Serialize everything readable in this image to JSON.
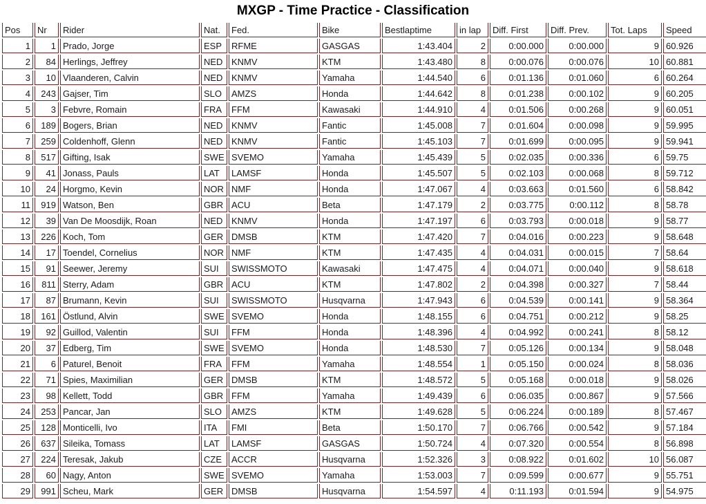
{
  "title": "MXGP - Time Practice - Classification",
  "colors": {
    "table_border": "#7b2323",
    "text": "#1a1a1a",
    "background": "#ffffff"
  },
  "table": {
    "columns": [
      {
        "key": "pos",
        "label": "Pos"
      },
      {
        "key": "nr",
        "label": "Nr"
      },
      {
        "key": "rider",
        "label": "Rider"
      },
      {
        "key": "nat",
        "label": "Nat."
      },
      {
        "key": "fed",
        "label": "Fed."
      },
      {
        "key": "bike",
        "label": "Bike"
      },
      {
        "key": "bestlaptime",
        "label": "Bestlaptime"
      },
      {
        "key": "in_lap",
        "label": "in lap"
      },
      {
        "key": "diff_first",
        "label": "Diff. First"
      },
      {
        "key": "diff_prev",
        "label": "Diff. Prev."
      },
      {
        "key": "tot_laps",
        "label": "Tot. Laps"
      },
      {
        "key": "speed",
        "label": "Speed"
      }
    ],
    "rows": [
      [
        "1",
        "1",
        "Prado, Jorge",
        "ESP",
        "RFME",
        "GASGAS",
        "1:43.404",
        "2",
        "0:00.000",
        "0:00.000",
        "9",
        "60.926"
      ],
      [
        "2",
        "84",
        "Herlings, Jeffrey",
        "NED",
        "KNMV",
        "KTM",
        "1:43.480",
        "8",
        "0:00.076",
        "0:00.076",
        "10",
        "60.881"
      ],
      [
        "3",
        "10",
        "Vlaanderen, Calvin",
        "NED",
        "KNMV",
        "Yamaha",
        "1:44.540",
        "6",
        "0:01.136",
        "0:01.060",
        "6",
        "60.264"
      ],
      [
        "4",
        "243",
        "Gajser, Tim",
        "SLO",
        "AMZS",
        "Honda",
        "1:44.642",
        "8",
        "0:01.238",
        "0:00.102",
        "9",
        "60.205"
      ],
      [
        "5",
        "3",
        "Febvre, Romain",
        "FRA",
        "FFM",
        "Kawasaki",
        "1:44.910",
        "4",
        "0:01.506",
        "0:00.268",
        "9",
        "60.051"
      ],
      [
        "6",
        "189",
        "Bogers, Brian",
        "NED",
        "KNMV",
        "Fantic",
        "1:45.008",
        "7",
        "0:01.604",
        "0:00.098",
        "9",
        "59.995"
      ],
      [
        "7",
        "259",
        "Coldenhoff, Glenn",
        "NED",
        "KNMV",
        "Fantic",
        "1:45.103",
        "7",
        "0:01.699",
        "0:00.095",
        "9",
        "59.941"
      ],
      [
        "8",
        "517",
        "Gifting, Isak",
        "SWE",
        "SVEMO",
        "Yamaha",
        "1:45.439",
        "5",
        "0:02.035",
        "0:00.336",
        "6",
        "59.75"
      ],
      [
        "9",
        "41",
        "Jonass, Pauls",
        "LAT",
        "LAMSF",
        "Honda",
        "1:45.507",
        "5",
        "0:02.103",
        "0:00.068",
        "8",
        "59.712"
      ],
      [
        "10",
        "24",
        "Horgmo, Kevin",
        "NOR",
        "NMF",
        "Honda",
        "1:47.067",
        "4",
        "0:03.663",
        "0:01.560",
        "6",
        "58.842"
      ],
      [
        "11",
        "919",
        "Watson, Ben",
        "GBR",
        "ACU",
        "Beta",
        "1:47.179",
        "2",
        "0:03.775",
        "0:00.112",
        "8",
        "58.78"
      ],
      [
        "12",
        "39",
        "Van De Moosdijk, Roan",
        "NED",
        "KNMV",
        "Honda",
        "1:47.197",
        "6",
        "0:03.793",
        "0:00.018",
        "9",
        "58.77"
      ],
      [
        "13",
        "226",
        "Koch, Tom",
        "GER",
        "DMSB",
        "KTM",
        "1:47.420",
        "7",
        "0:04.016",
        "0:00.223",
        "9",
        "58.648"
      ],
      [
        "14",
        "17",
        "Toendel, Cornelius",
        "NOR",
        "NMF",
        "KTM",
        "1:47.435",
        "4",
        "0:04.031",
        "0:00.015",
        "7",
        "58.64"
      ],
      [
        "15",
        "91",
        "Seewer, Jeremy",
        "SUI",
        "SWISSMOTO",
        "Kawasaki",
        "1:47.475",
        "4",
        "0:04.071",
        "0:00.040",
        "9",
        "58.618"
      ],
      [
        "16",
        "811",
        "Sterry, Adam",
        "GBR",
        "ACU",
        "KTM",
        "1:47.802",
        "2",
        "0:04.398",
        "0:00.327",
        "7",
        "58.44"
      ],
      [
        "17",
        "87",
        "Brumann, Kevin",
        "SUI",
        "SWISSMOTO",
        "Husqvarna",
        "1:47.943",
        "6",
        "0:04.539",
        "0:00.141",
        "9",
        "58.364"
      ],
      [
        "18",
        "161",
        "Östlund, Alvin",
        "SWE",
        "SVEMO",
        "Honda",
        "1:48.155",
        "6",
        "0:04.751",
        "0:00.212",
        "9",
        "58.25"
      ],
      [
        "19",
        "92",
        "Guillod, Valentin",
        "SUI",
        "FFM",
        "Honda",
        "1:48.396",
        "4",
        "0:04.992",
        "0:00.241",
        "8",
        "58.12"
      ],
      [
        "20",
        "37",
        "Edberg, Tim",
        "SWE",
        "SVEMO",
        "Honda",
        "1:48.530",
        "7",
        "0:05.126",
        "0:00.134",
        "9",
        "58.048"
      ],
      [
        "21",
        "6",
        "Paturel, Benoit",
        "FRA",
        "FFM",
        "Yamaha",
        "1:48.554",
        "1",
        "0:05.150",
        "0:00.024",
        "8",
        "58.036"
      ],
      [
        "22",
        "71",
        "Spies, Maximilian",
        "GER",
        "DMSB",
        "KTM",
        "1:48.572",
        "5",
        "0:05.168",
        "0:00.018",
        "9",
        "58.026"
      ],
      [
        "23",
        "98",
        "Kellett, Todd",
        "GBR",
        "FFM",
        "Yamaha",
        "1:49.439",
        "6",
        "0:06.035",
        "0:00.867",
        "9",
        "57.566"
      ],
      [
        "24",
        "253",
        "Pancar, Jan",
        "SLO",
        "AMZS",
        "KTM",
        "1:49.628",
        "5",
        "0:06.224",
        "0:00.189",
        "8",
        "57.467"
      ],
      [
        "25",
        "128",
        "Monticelli, Ivo",
        "ITA",
        "FMI",
        "Beta",
        "1:50.170",
        "7",
        "0:06.766",
        "0:00.542",
        "9",
        "57.184"
      ],
      [
        "26",
        "637",
        "Sileika, Tomass",
        "LAT",
        "LAMSF",
        "GASGAS",
        "1:50.724",
        "4",
        "0:07.320",
        "0:00.554",
        "8",
        "56.898"
      ],
      [
        "27",
        "224",
        "Teresak, Jakub",
        "CZE",
        "ACCR",
        "Husqvarna",
        "1:52.326",
        "3",
        "0:08.922",
        "0:01.602",
        "10",
        "56.087"
      ],
      [
        "28",
        "60",
        "Nagy, Anton",
        "SWE",
        "SVEMO",
        "Yamaha",
        "1:53.003",
        "7",
        "0:09.599",
        "0:00.677",
        "9",
        "55.751"
      ],
      [
        "29",
        "991",
        "Scheu, Mark",
        "GER",
        "DMSB",
        "Husqvarna",
        "1:54.597",
        "4",
        "0:11.193",
        "0:01.594",
        "9",
        "54.975"
      ]
    ]
  }
}
